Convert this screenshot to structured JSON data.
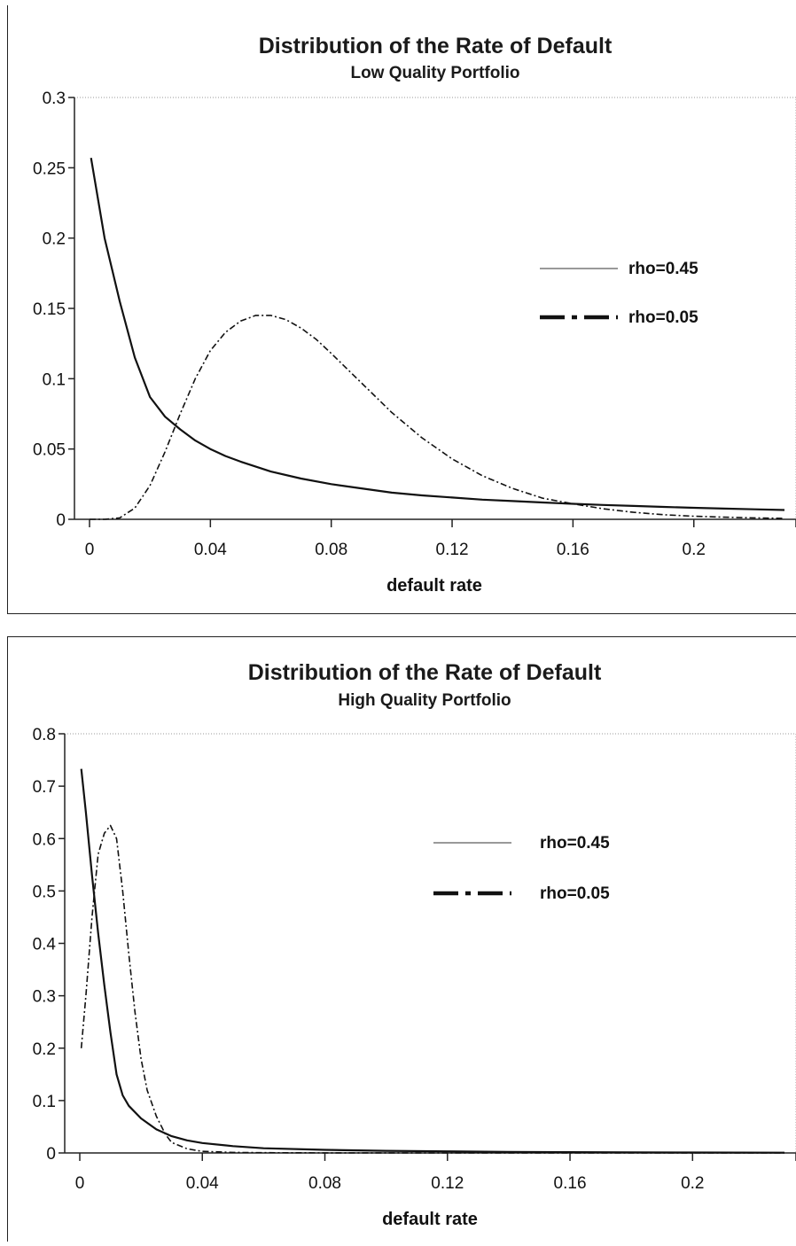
{
  "chart_data": [
    {
      "type": "line",
      "title": "Distribution of the Rate of Default",
      "subtitle": "Low Quality Portfolio",
      "xlabel": "default rate",
      "ylabel": "",
      "xlim": [
        0,
        0.23
      ],
      "ylim": [
        0,
        0.3
      ],
      "x_ticks": [
        0,
        0.04,
        0.08,
        0.12,
        0.16,
        0.2
      ],
      "x_tick_labels": [
        "0",
        "0.04",
        "0.08",
        "0.12",
        "0.16",
        "0.2"
      ],
      "y_ticks": [
        0,
        0.05,
        0.1,
        0.15,
        0.2,
        0.25,
        0.3
      ],
      "y_tick_labels": [
        "0",
        "0.05",
        "0.1",
        "0.15",
        "0.2",
        "0.25",
        "0.3"
      ],
      "grid": false,
      "legend_position": "right",
      "series": [
        {
          "name": "rho=0.45",
          "style": "solid",
          "x": [
            0.0005,
            0.005,
            0.01,
            0.015,
            0.02,
            0.025,
            0.03,
            0.035,
            0.04,
            0.045,
            0.05,
            0.06,
            0.07,
            0.08,
            0.09,
            0.1,
            0.11,
            0.12,
            0.13,
            0.14,
            0.15,
            0.16,
            0.17,
            0.18,
            0.19,
            0.2,
            0.21,
            0.22,
            0.23
          ],
          "y": [
            0.257,
            0.2,
            0.155,
            0.115,
            0.087,
            0.073,
            0.064,
            0.056,
            0.05,
            0.045,
            0.041,
            0.034,
            0.029,
            0.025,
            0.022,
            0.019,
            0.017,
            0.0155,
            0.014,
            0.013,
            0.012,
            0.011,
            0.0102,
            0.0095,
            0.0088,
            0.0082,
            0.0076,
            0.0071,
            0.0066
          ]
        },
        {
          "name": "rho=0.05",
          "style": "dash-dot",
          "x": [
            0,
            0.005,
            0.01,
            0.015,
            0.02,
            0.025,
            0.03,
            0.035,
            0.04,
            0.045,
            0.05,
            0.055,
            0.06,
            0.065,
            0.07,
            0.075,
            0.08,
            0.09,
            0.1,
            0.11,
            0.12,
            0.13,
            0.14,
            0.15,
            0.16,
            0.17,
            0.18,
            0.19,
            0.2,
            0.21,
            0.22,
            0.23
          ],
          "y": [
            0,
            0,
            0.001,
            0.008,
            0.024,
            0.048,
            0.075,
            0.1,
            0.12,
            0.133,
            0.141,
            0.145,
            0.145,
            0.142,
            0.136,
            0.128,
            0.118,
            0.097,
            0.076,
            0.058,
            0.043,
            0.031,
            0.022,
            0.015,
            0.011,
            0.0075,
            0.005,
            0.0033,
            0.0022,
            0.0015,
            0.001,
            0.0007
          ]
        }
      ]
    },
    {
      "type": "line",
      "title": "Distribution of the Rate of Default",
      "subtitle": "High Quality Portfolio",
      "xlabel": "default rate",
      "ylabel": "",
      "xlim": [
        0,
        0.23
      ],
      "ylim": [
        0,
        0.8
      ],
      "x_ticks": [
        0,
        0.04,
        0.08,
        0.12,
        0.16,
        0.2
      ],
      "x_tick_labels": [
        "0",
        "0.04",
        "0.08",
        "0.12",
        "0.16",
        "0.2"
      ],
      "y_ticks": [
        0,
        0.1,
        0.2,
        0.3,
        0.4,
        0.5,
        0.6,
        0.7,
        0.8
      ],
      "y_tick_labels": [
        "0",
        "0.1",
        "0.2",
        "0.3",
        "0.4",
        "0.5",
        "0.6",
        "0.7",
        "0.8"
      ],
      "grid": false,
      "legend_position": "right",
      "series": [
        {
          "name": "rho=0.45",
          "style": "solid",
          "x": [
            0.0005,
            0.002,
            0.004,
            0.006,
            0.008,
            0.01,
            0.012,
            0.014,
            0.016,
            0.02,
            0.025,
            0.03,
            0.035,
            0.04,
            0.05,
            0.06,
            0.08,
            0.1,
            0.12,
            0.14,
            0.16,
            0.18,
            0.2,
            0.23
          ],
          "y": [
            0.733,
            0.65,
            0.53,
            0.42,
            0.32,
            0.23,
            0.15,
            0.11,
            0.09,
            0.066,
            0.045,
            0.032,
            0.024,
            0.019,
            0.013,
            0.009,
            0.006,
            0.004,
            0.003,
            0.002,
            0.0015,
            0.001,
            0.0008,
            0.0005
          ]
        },
        {
          "name": "rho=0.05",
          "style": "dash-dot",
          "x": [
            0.0005,
            0.002,
            0.004,
            0.006,
            0.008,
            0.01,
            0.012,
            0.014,
            0.016,
            0.018,
            0.02,
            0.022,
            0.025,
            0.028,
            0.03,
            0.035,
            0.04,
            0.05,
            0.06,
            0.08,
            0.1,
            0.23
          ],
          "y": [
            0.2,
            0.3,
            0.45,
            0.57,
            0.61,
            0.625,
            0.6,
            0.5,
            0.38,
            0.27,
            0.18,
            0.12,
            0.07,
            0.035,
            0.02,
            0.008,
            0.003,
            0.001,
            0.0005,
            0.0002,
            0.0001,
            0
          ]
        }
      ]
    }
  ]
}
